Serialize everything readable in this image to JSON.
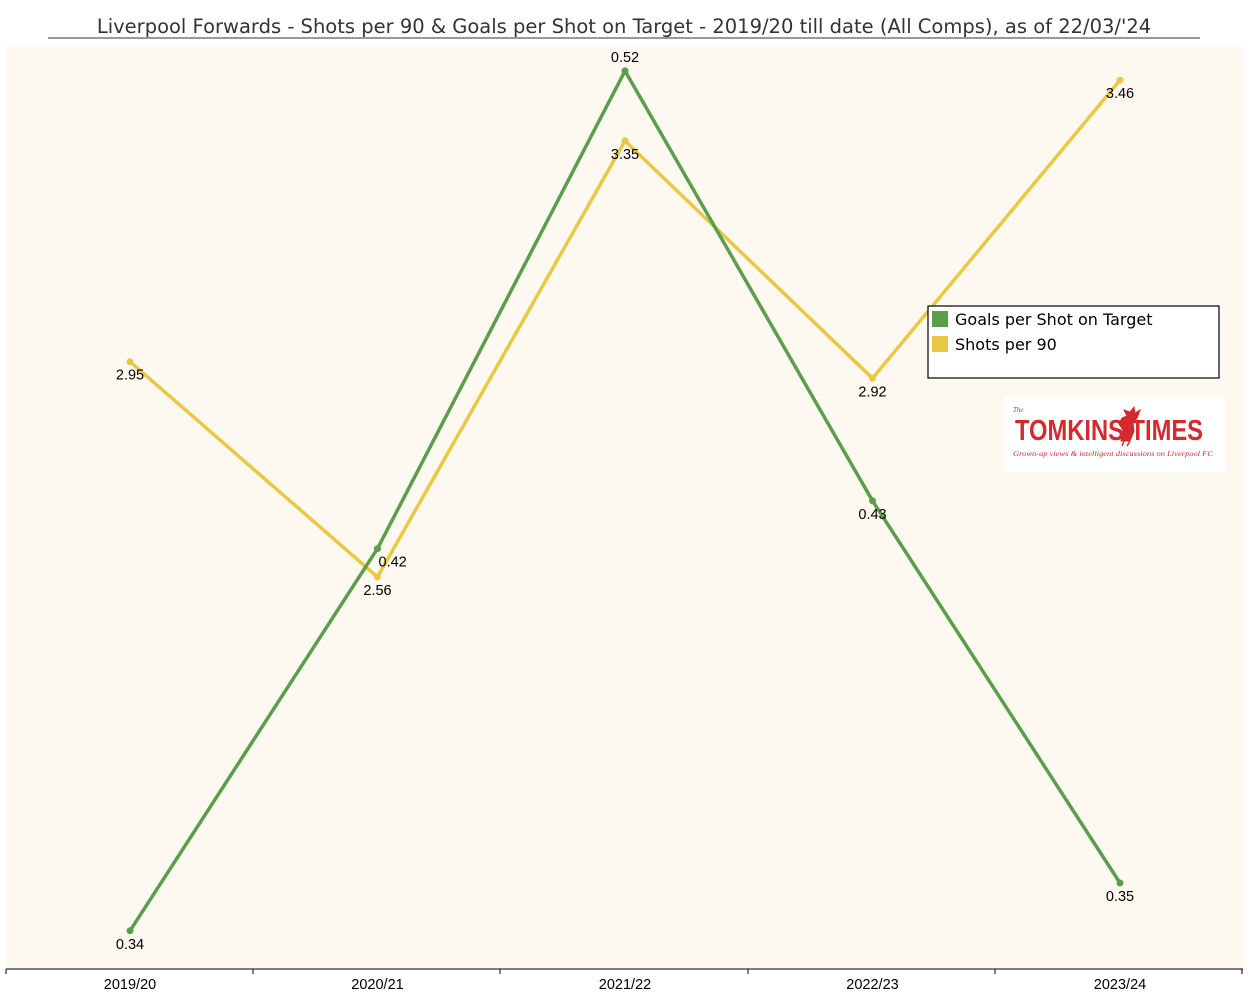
{
  "colors": {
    "background": "#FDF9F0",
    "goals_line": "#5A9E4B",
    "shots_line": "#EAC844",
    "logo_red": "#D42A2E",
    "axis": "#000000"
  },
  "logo": {
    "the": "The",
    "name": "TOMKINS TIMES",
    "tagline": "Grown-up views & intelligent discussions on Liverpool FC",
    "icon": "liver-bird-icon"
  },
  "chart_data": {
    "type": "line",
    "title": "Liverpool Forwards - Shots per 90 & Goals per Shot on Target - 2019/20 till date (All Comps), as of 22/03/'24",
    "xlabel": "",
    "ylabel": "",
    "categories": [
      "2019/20",
      "2020/21",
      "2021/22",
      "2022/23",
      "2023/24"
    ],
    "grid": false,
    "legend_position": "right",
    "series": [
      {
        "name": "Goals per Shot on Target",
        "key": "goals",
        "axis": "right",
        "ylim": [
          0.332,
          0.525
        ],
        "values": [
          0.34,
          0.42,
          0.52,
          0.43,
          0.35
        ],
        "labels": [
          "0.34",
          "0.42",
          "0.52",
          "0.43",
          "0.35"
        ],
        "label_positions": [
          "below",
          "below-right",
          "above",
          "below",
          "below"
        ]
      },
      {
        "name": "Shots per 90",
        "key": "shots",
        "axis": "left",
        "ylim": [
          1.85,
          3.52
        ],
        "values": [
          2.95,
          2.56,
          3.35,
          2.92,
          3.46
        ],
        "labels": [
          "2.95",
          "2.56",
          "3.35",
          "2.92",
          "3.46"
        ],
        "label_positions": [
          "below",
          "below",
          "below",
          "below",
          "below"
        ]
      }
    ]
  }
}
